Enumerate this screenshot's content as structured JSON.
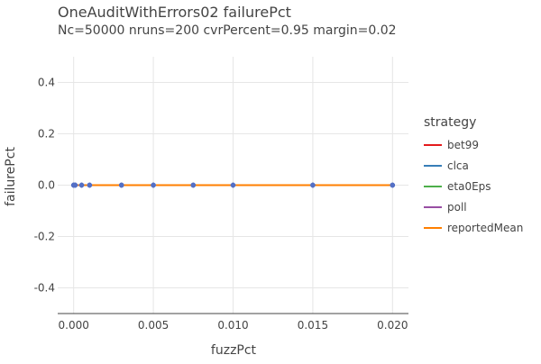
{
  "chart_data": {
    "type": "line",
    "title": "OneAuditWithErrors02 failurePct",
    "subtitle": "Nc=50000 nruns=200 cvrPercent=0.95 margin=0.02",
    "xlabel": "fuzzPct",
    "ylabel": "failurePct",
    "xlim": [
      -0.001,
      0.021
    ],
    "ylim": [
      -0.5,
      0.5
    ],
    "x_ticks": [
      "0.000",
      "0.005",
      "0.010",
      "0.015",
      "0.020"
    ],
    "y_ticks": [
      "-0.4",
      "-0.2",
      "0.0",
      "0.2",
      "0.4"
    ],
    "grid": true,
    "legend": {
      "title": "strategy",
      "placement": "right"
    },
    "x": [
      0.0,
      0.0001,
      0.0005,
      0.001,
      0.003,
      0.005,
      0.0075,
      0.01,
      0.015,
      0.02
    ],
    "series": [
      {
        "name": "bet99",
        "color": "#e41a1c",
        "values": [
          0,
          0,
          0,
          0,
          0,
          0,
          0,
          0,
          0,
          0
        ]
      },
      {
        "name": "clca",
        "color": "#377eb8",
        "values": [
          0,
          0,
          0,
          0,
          0,
          0,
          0,
          0,
          0,
          0
        ]
      },
      {
        "name": "eta0Eps",
        "color": "#4daf4a",
        "values": [
          0,
          0,
          0,
          0,
          0,
          0,
          0,
          0,
          0,
          0
        ]
      },
      {
        "name": "poll",
        "color": "#984ea3",
        "values": [
          0,
          0,
          0,
          0,
          0,
          0,
          0,
          0,
          0,
          0
        ]
      },
      {
        "name": "reportedMean",
        "color": "#ff7f00",
        "values": [
          0,
          0,
          0,
          0,
          0,
          0,
          0,
          0,
          0,
          0
        ]
      }
    ],
    "marker_color": "#5470c6"
  }
}
